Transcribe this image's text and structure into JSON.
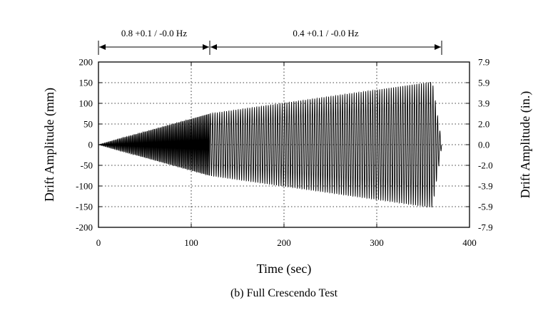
{
  "chart_data": {
    "type": "line",
    "title": "",
    "caption": "(b) Full Crescendo Test",
    "xlabel": "Time (sec)",
    "ylabel": "Drift Amplitude (mm)",
    "ylabel_right": "Drift Amplitude (in.)",
    "xlim": [
      0,
      400
    ],
    "ylim": [
      -200,
      200
    ],
    "x_ticks": [
      "0",
      "100",
      "200",
      "300",
      "400"
    ],
    "y_ticks": [
      "200",
      "150",
      "100",
      "50",
      "0",
      "-50",
      "-100",
      "-150",
      "-200"
    ],
    "y_ticks_right": [
      "7.9",
      "5.9",
      "3.9",
      "2.0",
      "0.0",
      "-2.0",
      "-3.9",
      "-5.9",
      "-7.9"
    ],
    "grid": true,
    "annotations": [
      {
        "label": "0.8 +0.1 / -0.0 Hz",
        "x_start": 0,
        "x_end": 120
      },
      {
        "label": "0.4 +0.1 / -0.0 Hz",
        "x_start": 120,
        "x_end": 370
      }
    ],
    "series": [
      {
        "frequency_segments": [
          {
            "t_start": 0,
            "t_end": 120,
            "freq_hz": 0.8
          },
          {
            "t_start": 120,
            "t_end": 360,
            "freq_hz": 0.4
          }
        ],
        "envelope": [
          [
            0,
            0
          ],
          [
            120,
            75
          ],
          [
            360,
            152
          ],
          [
            370,
            5
          ]
        ]
      }
    ]
  }
}
